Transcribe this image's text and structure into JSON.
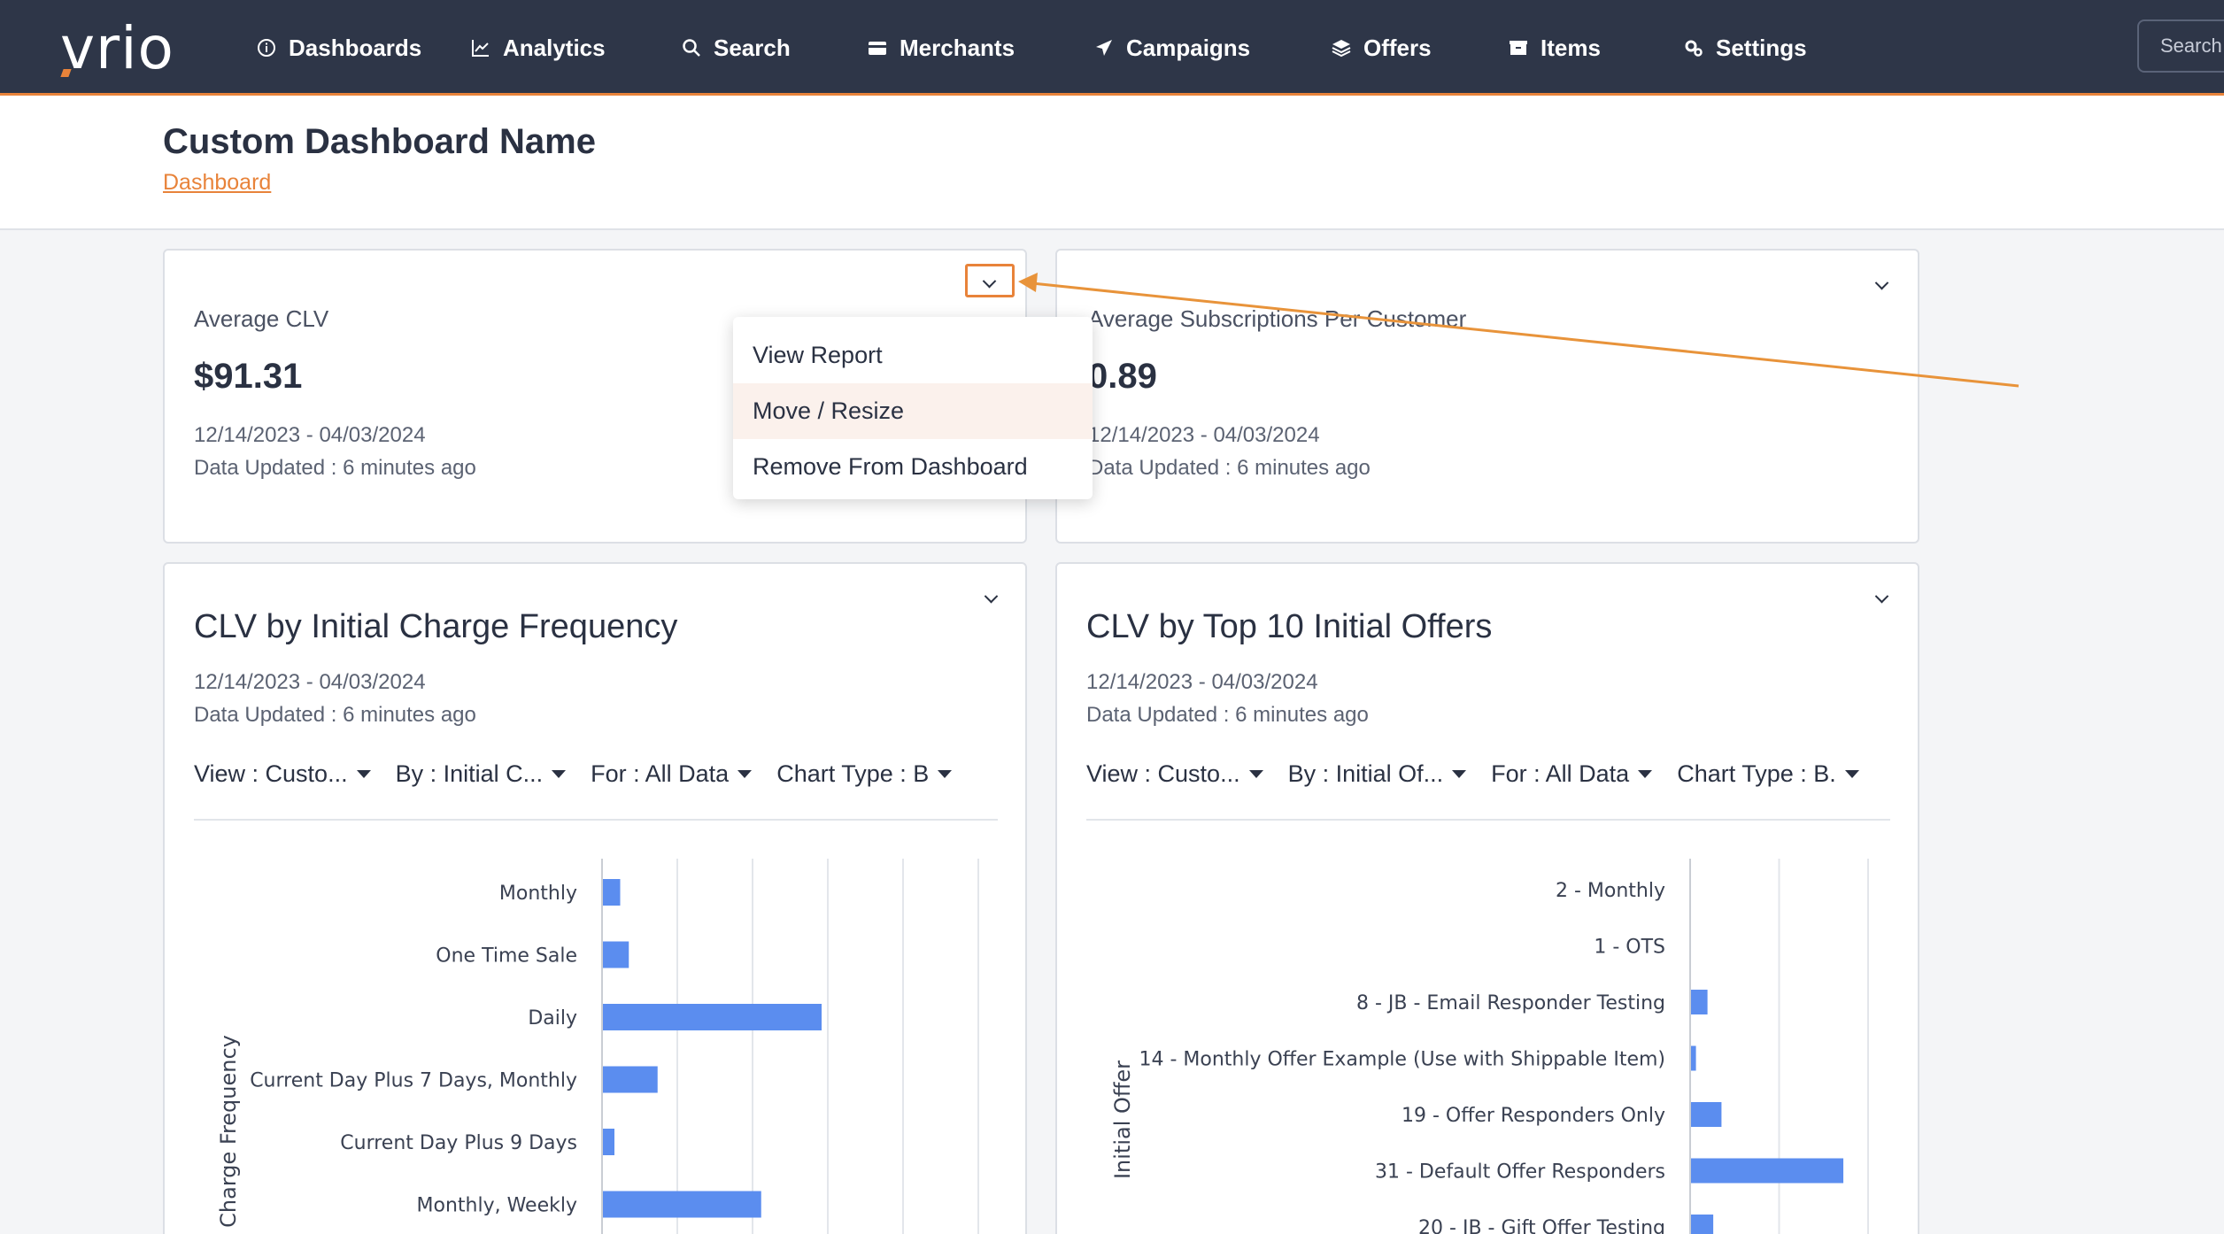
{
  "nav": {
    "logo": "vrio",
    "items": [
      {
        "label": "Dashboards",
        "icon": "info-circle-icon"
      },
      {
        "label": "Analytics",
        "icon": "line-chart-icon"
      },
      {
        "label": "Search",
        "icon": "search-icon"
      },
      {
        "label": "Merchants",
        "icon": "credit-card-icon"
      },
      {
        "label": "Campaigns",
        "icon": "paper-plane-icon"
      },
      {
        "label": "Offers",
        "icon": "layers-icon"
      },
      {
        "label": "Items",
        "icon": "box-icon"
      },
      {
        "label": "Settings",
        "icon": "gears-icon"
      }
    ],
    "search_placeholder": "Search"
  },
  "header": {
    "title": "Custom Dashboard Name",
    "breadcrumb": "Dashboard"
  },
  "cards": {
    "avg_clv": {
      "label": "Average CLV",
      "value": "$91.31",
      "date_range": "12/14/2023 - 04/03/2024",
      "updated": "Data Updated : 6 minutes ago"
    },
    "avg_subs": {
      "label": "Average Subscriptions Per Customer",
      "value": "0.89",
      "date_range": "12/14/2023 - 04/03/2024",
      "updated": "Data Updated : 6 minutes ago"
    },
    "clv_freq": {
      "title": "CLV by Initial Charge Frequency",
      "date_range": "12/14/2023 - 04/03/2024",
      "updated": "Data Updated : 6 minutes ago",
      "filters": [
        "View : Custo...",
        "By : Initial C...",
        "For : All Data",
        "Chart Type : B"
      ]
    },
    "clv_offers": {
      "title": "CLV by Top 10 Initial Offers",
      "date_range": "12/14/2023 - 04/03/2024",
      "updated": "Data Updated : 6 minutes ago",
      "filters": [
        "View : Custo...",
        "By : Initial Of...",
        "For : All Data",
        "Chart Type : B."
      ]
    }
  },
  "menu": {
    "items": [
      "View Report",
      "Move / Resize",
      "Remove From Dashboard"
    ],
    "active_index": 1
  },
  "colors": {
    "navbar": "#2e3648",
    "accent": "#e8833a",
    "bar": "#5b8def"
  },
  "chart_data": [
    {
      "type": "bar",
      "orientation": "horizontal",
      "ylabel": "Initial Charge Frequency",
      "categories": [
        "Monthly",
        "One Time Sale",
        "Daily",
        "Current Day Plus 7 Days, Monthly",
        "Current Day Plus 9 Days",
        "Monthly, Weekly"
      ],
      "values": [
        3,
        4.5,
        38,
        9.5,
        2,
        27.5
      ],
      "xlim": [
        0,
        50
      ]
    },
    {
      "type": "bar",
      "orientation": "horizontal",
      "ylabel": "Initial Offer",
      "categories": [
        "2 - Monthly",
        "1 - OTS",
        "8 - JB - Email Responder Testing",
        "14 - Monthly Offer Example (Use with Shippable Item)",
        "19 - Offer Responders Only",
        "31 - Default Offer Responders",
        "20 - JB - Gift Offer Testing"
      ],
      "values": [
        0,
        0,
        2,
        0.6,
        3.7,
        18.5,
        2.7
      ],
      "xlim": [
        0,
        22
      ]
    }
  ]
}
